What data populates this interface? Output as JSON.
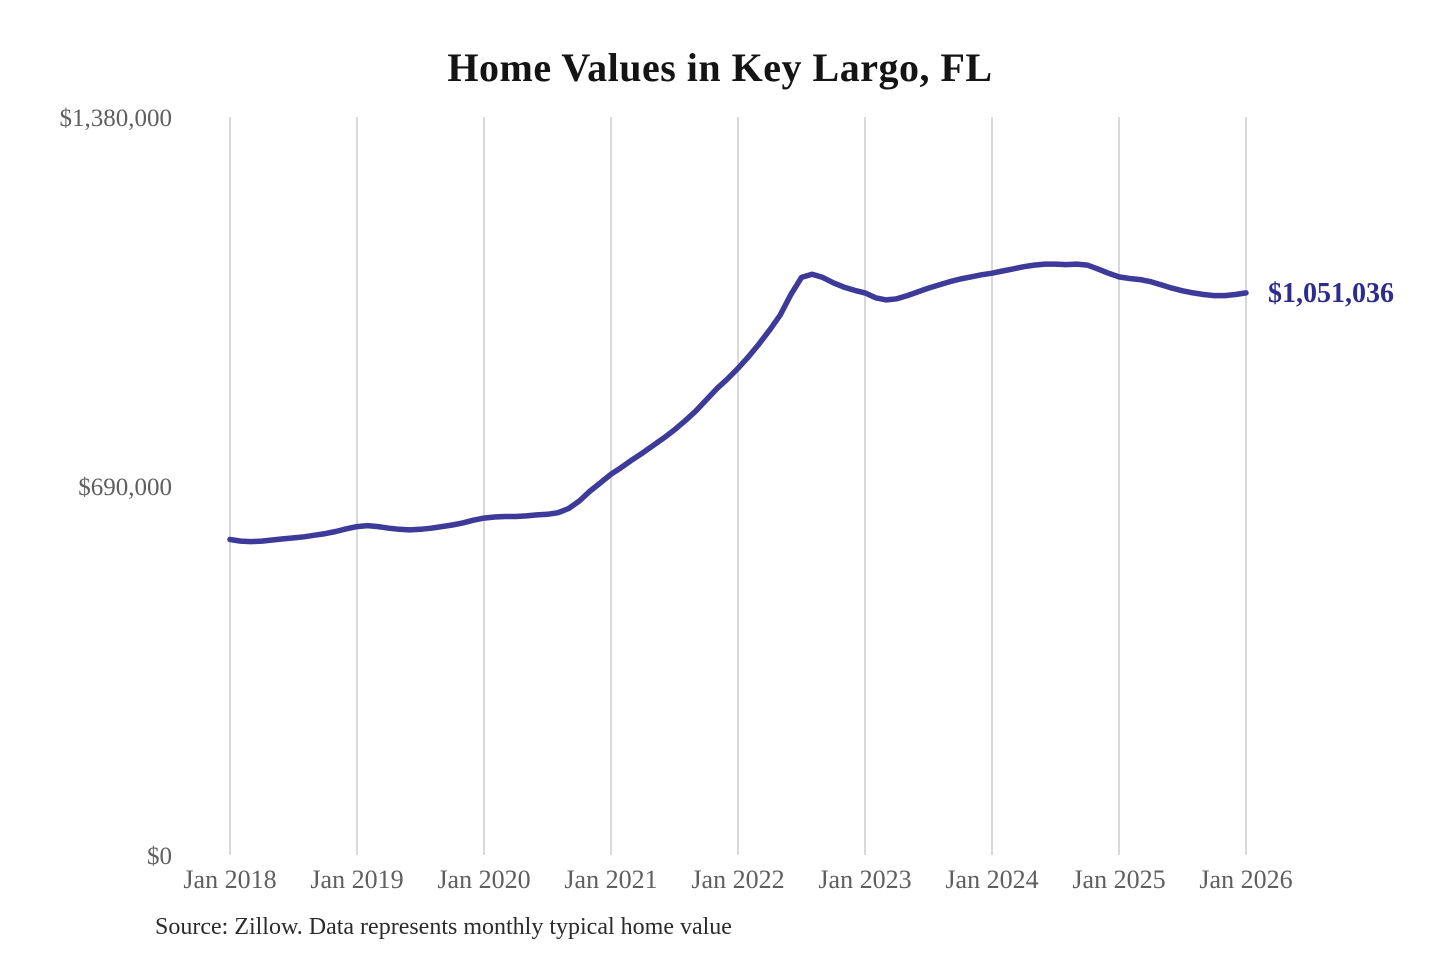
{
  "title": "Home Values in Key Largo, FL",
  "source_note": "Source: Zillow. Data represents monthly typical home value",
  "colors": {
    "background": "#ffffff",
    "line": "#3d3a9a",
    "end_label": "#2e2b8e",
    "grid": "#c9c9c9",
    "axis_text": "#5f5f5f",
    "title_text": "#141414",
    "source_text": "#2b2b2b"
  },
  "chart_data": {
    "type": "line",
    "title": "Home Values in Key Largo, FL",
    "xlabel": "",
    "ylabel": "",
    "x_tick_labels": [
      "Jan 2018",
      "Jan 2019",
      "Jan 2020",
      "Jan 2021",
      "Jan 2022",
      "Jan 2023",
      "Jan 2024",
      "Jan 2025",
      "Jan 2026"
    ],
    "y_ticks": [
      0,
      690000,
      1380000
    ],
    "y_tick_labels": [
      "$0",
      "$690,000",
      "$1,380,000"
    ],
    "ylim": [
      0,
      1380000
    ],
    "grid": "vertical-only",
    "legend_position": "none",
    "x_start": "2018-01",
    "x_end": "2026-01",
    "x_frequency": "monthly",
    "series": [
      {
        "name": "Typical home value",
        "values": [
          590000,
          587000,
          586000,
          587000,
          589000,
          591000,
          593000,
          595000,
          598000,
          601000,
          605000,
          610000,
          614000,
          616000,
          614000,
          611000,
          609000,
          608000,
          609000,
          611000,
          614000,
          617000,
          621000,
          626000,
          630000,
          632000,
          633000,
          633000,
          634000,
          636000,
          637000,
          640000,
          648000,
          662000,
          680000,
          696000,
          712000,
          725000,
          739000,
          752000,
          766000,
          780000,
          795000,
          812000,
          830000,
          851000,
          872000,
          890000,
          910000,
          932000,
          956000,
          982000,
          1010000,
          1048000,
          1080000,
          1086000,
          1080000,
          1070000,
          1062000,
          1056000,
          1051000,
          1042000,
          1038000,
          1040000,
          1046000,
          1053000,
          1060000,
          1066000,
          1072000,
          1077000,
          1081000,
          1085000,
          1088000,
          1092000,
          1096000,
          1100000,
          1103000,
          1105000,
          1105000,
          1104000,
          1105000,
          1103000,
          1096000,
          1088000,
          1081000,
          1078000,
          1076000,
          1072000,
          1066000,
          1060000,
          1055000,
          1051000,
          1048000,
          1046000,
          1046000,
          1048000,
          1051036
        ]
      }
    ],
    "last_value": 1051036,
    "last_value_label": "$1,051,036"
  }
}
